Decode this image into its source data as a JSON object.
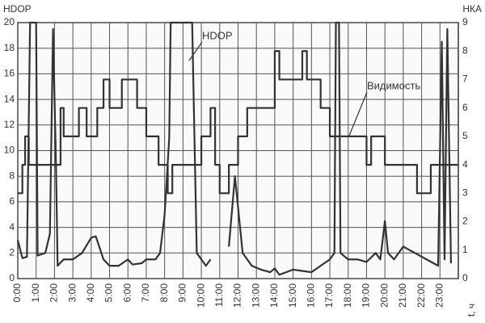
{
  "chart_data": {
    "type": "line",
    "y_label": "HDOP",
    "y2_label": "НКА",
    "x_label": "t, ч",
    "xlim": [
      0,
      24
    ],
    "xticks": [
      {
        "value": 0,
        "label": "0:00"
      },
      {
        "value": 1,
        "label": "1:00"
      },
      {
        "value": 2,
        "label": "2:00"
      },
      {
        "value": 3,
        "label": "3:00"
      },
      {
        "value": 4,
        "label": "4:00"
      },
      {
        "value": 5,
        "label": "5:00"
      },
      {
        "value": 6,
        "label": "6:00"
      },
      {
        "value": 7,
        "label": "7:00"
      },
      {
        "value": 8,
        "label": "8:00"
      },
      {
        "value": 9,
        "label": "9:00"
      },
      {
        "value": 10,
        "label": "10:00"
      },
      {
        "value": 11,
        "label": "11:00"
      },
      {
        "value": 12,
        "label": "12:00"
      },
      {
        "value": 13,
        "label": "13:00"
      },
      {
        "value": 14,
        "label": "14:00"
      },
      {
        "value": 15,
        "label": "15:00"
      },
      {
        "value": 16,
        "label": "16:00"
      },
      {
        "value": 17,
        "label": "17:00"
      },
      {
        "value": 18,
        "label": "18:00"
      },
      {
        "value": 19,
        "label": "19:00"
      },
      {
        "value": 20,
        "label": "20:00"
      },
      {
        "value": 21,
        "label": "21:00"
      },
      {
        "value": 22,
        "label": "22:00"
      },
      {
        "value": 23,
        "label": "23:00"
      }
    ],
    "ylim": [
      0,
      20
    ],
    "yticks": [
      0,
      2,
      4,
      6,
      8,
      10,
      12,
      14,
      16,
      18,
      20
    ],
    "y2lim": [
      0,
      9
    ],
    "y2ticks": [
      0,
      1,
      2,
      3,
      4,
      5,
      6,
      7,
      8,
      9
    ],
    "grid": true,
    "series": [
      {
        "name": "HDOP",
        "color": "#333333",
        "x": [
          0,
          0.25,
          0.5,
          0.67,
          1.0,
          1.08,
          1.5,
          1.75,
          1.92,
          2.08,
          2.17,
          2.5,
          3.0,
          3.5,
          4.0,
          4.25,
          4.67,
          5.0,
          5.5,
          6.0,
          6.25,
          6.75,
          7.0,
          7.5,
          7.75,
          8.0,
          8.25,
          8.33,
          9.5,
          9.75,
          10.25,
          10.5,
          11.17,
          11.5,
          11.83,
          12.25,
          12.75,
          13.25,
          13.75,
          14.0,
          14.25,
          15.0,
          15.5,
          16.0,
          16.5,
          17.0,
          17.25,
          17.33,
          17.5,
          17.58,
          18.0,
          18.5,
          19.0,
          19.5,
          19.75,
          20.0,
          20.17,
          20.5,
          21.0,
          22.9,
          23.1,
          23.25,
          23.4,
          23.6
        ],
        "values": [
          3,
          1.6,
          1.7,
          20,
          20,
          1.8,
          2,
          3.5,
          19.5,
          9,
          1,
          1.5,
          1.5,
          2,
          3.2,
          3.3,
          1.5,
          1,
          1,
          1.5,
          1.1,
          1.2,
          1.5,
          1.5,
          2,
          5,
          11,
          20,
          20,
          2,
          1,
          1.5,
          null,
          2.5,
          8,
          2,
          1,
          0.7,
          0.5,
          0.8,
          0.3,
          0.7,
          0.6,
          0.5,
          1,
          1.5,
          2,
          20,
          20,
          2,
          1.5,
          1.5,
          1.3,
          2,
          1.5,
          4.5,
          2,
          1.5,
          2.5,
          1,
          18.5,
          1.5,
          19.5,
          1.2
        ]
      },
      {
        "name": "Видимость",
        "color": "#333333",
        "axis": "y2",
        "step": true,
        "x": [
          0,
          0.25,
          0.4,
          0.6,
          2.17,
          2.33,
          2.5,
          3.33,
          3.75,
          4.33,
          4.67,
          5.0,
          5.67,
          6.5,
          7.0,
          7.67,
          8.17,
          8.42,
          10.0,
          10.5,
          10.75,
          11.0,
          11.5,
          12.0,
          12.5,
          14.0,
          14.25,
          15.5,
          15.75,
          16.5,
          17.0,
          19.0,
          19.25,
          20.0,
          21.75,
          22.5,
          24.0
        ],
        "values": [
          3,
          4,
          5,
          4,
          4,
          6,
          5,
          6,
          5,
          6,
          7,
          6,
          7,
          6,
          5,
          4,
          3,
          4,
          5,
          6,
          4,
          3,
          4,
          5,
          6,
          8,
          7,
          8,
          7,
          6,
          5,
          4,
          5,
          4,
          3,
          4,
          4
        ]
      }
    ]
  }
}
